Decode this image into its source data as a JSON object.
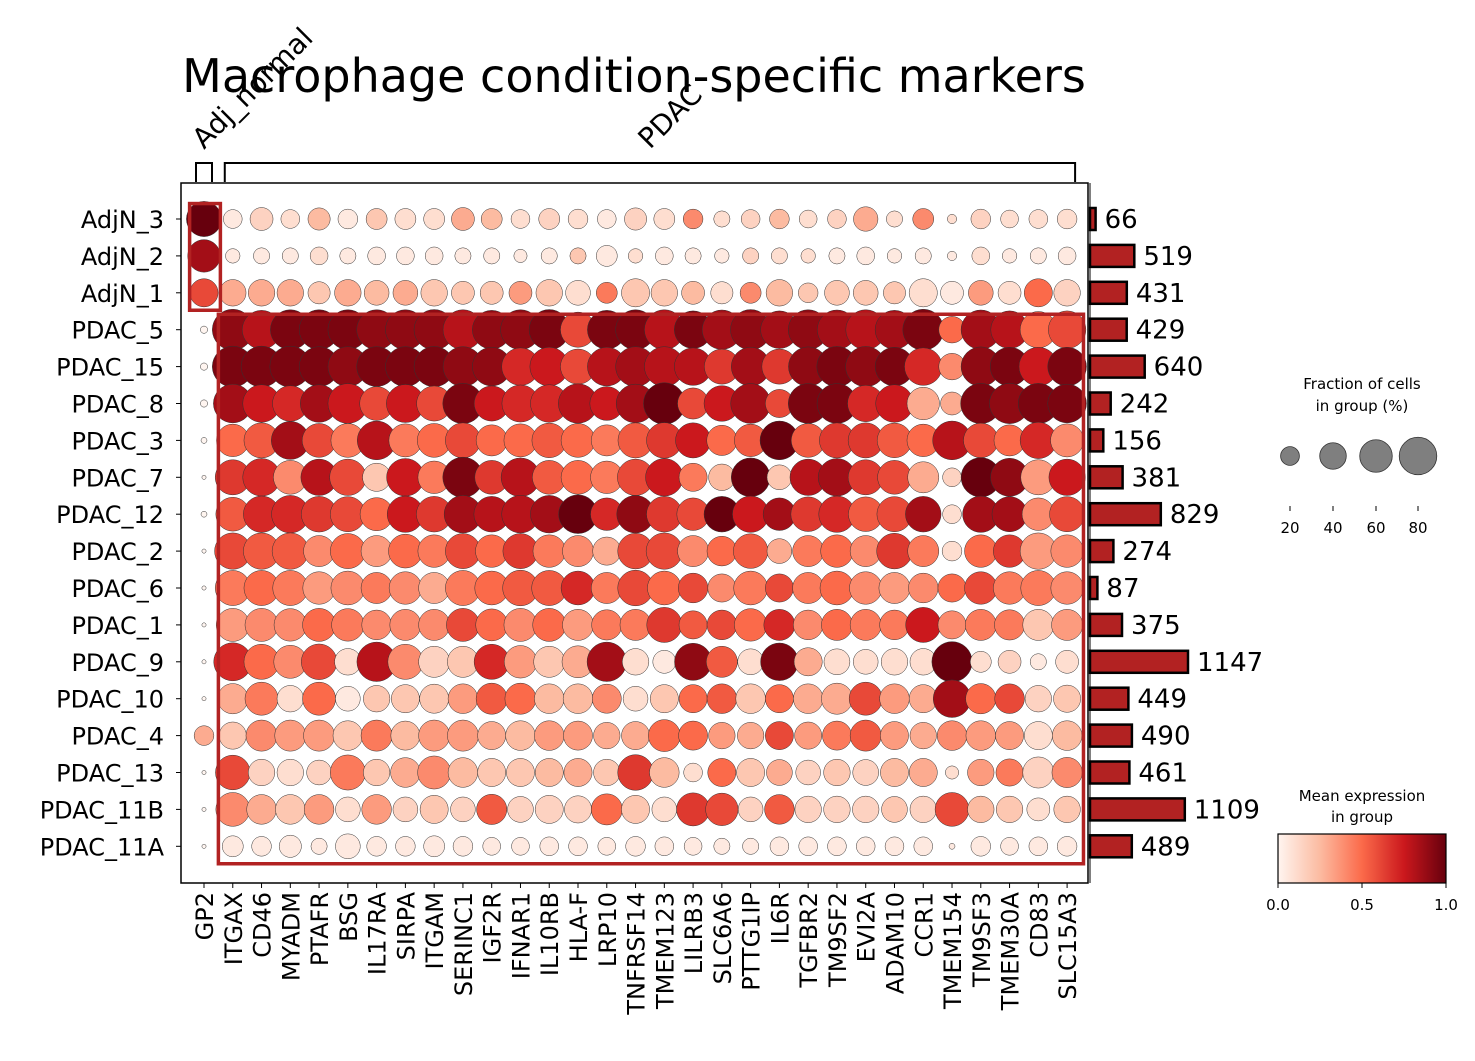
{
  "chart_data": {
    "type": "scatter",
    "title": "Macrophage condition-specific markers",
    "groups": [
      "AdjN_3",
      "AdjN_2",
      "AdjN_1",
      "PDAC_5",
      "PDAC_15",
      "PDAC_8",
      "PDAC_3",
      "PDAC_7",
      "PDAC_12",
      "PDAC_2",
      "PDAC_6",
      "PDAC_1",
      "PDAC_9",
      "PDAC_10",
      "PDAC_4",
      "PDAC_13",
      "PDAC_11B",
      "PDAC_11A"
    ],
    "genes": [
      "GP2",
      "ITGAX",
      "CD46",
      "MYADM",
      "PTAFR",
      "BSG",
      "IL17RA",
      "SIRPA",
      "ITGAM",
      "SERINC1",
      "IGF2R",
      "IFNAR1",
      "IL10RB",
      "HLA-F",
      "LRP10",
      "TNFRSF14",
      "TMEM123",
      "LILRB3",
      "SLC6A6",
      "PTTG1IP",
      "IL6R",
      "TGFBR2",
      "TM9SF2",
      "EVI2A",
      "ADAM10",
      "CCR1",
      "TMEM154",
      "TM9SF3",
      "TMEM30A",
      "CD83",
      "SLC15A3"
    ],
    "var_groups": [
      {
        "label": "Adj_normal",
        "genes": [
          "GP2"
        ]
      },
      {
        "label": "PDAC",
        "genes": [
          "ITGAX",
          "CD46",
          "MYADM",
          "PTAFR",
          "BSG",
          "IL17RA",
          "SIRPA",
          "ITGAM",
          "SERINC1",
          "IGF2R",
          "IFNAR1",
          "IL10RB",
          "HLA-F",
          "LRP10",
          "TNFRSF14",
          "TMEM123",
          "LILRB3",
          "SLC6A6",
          "PTTG1IP",
          "IL6R",
          "TGFBR2",
          "TM9SF2",
          "EVI2A",
          "ADAM10",
          "CCR1",
          "TMEM154",
          "TM9SF3",
          "TMEM30A",
          "CD83",
          "SLC15A3"
        ]
      }
    ],
    "cell_counts": [
      66,
      519,
      431,
      429,
      640,
      242,
      156,
      381,
      829,
      274,
      87,
      375,
      1147,
      449,
      490,
      461,
      1109,
      489
    ],
    "fraction_pct": [
      [
        70,
        20,
        30,
        20,
        28,
        22,
        25,
        25,
        25,
        30,
        25,
        20,
        25,
        22,
        20,
        28,
        25,
        22,
        15,
        20,
        22,
        18,
        20,
        34,
        15,
        25,
        5,
        22,
        18,
        20,
        22
      ],
      [
        60,
        12,
        15,
        15,
        18,
        15,
        18,
        18,
        18,
        15,
        15,
        10,
        15,
        15,
        25,
        12,
        18,
        15,
        12,
        15,
        15,
        12,
        15,
        18,
        12,
        15,
        5,
        18,
        12,
        15,
        18
      ],
      [
        45,
        40,
        40,
        40,
        28,
        40,
        35,
        35,
        40,
        30,
        30,
        30,
        40,
        35,
        25,
        45,
        40,
        30,
        28,
        25,
        40,
        22,
        35,
        35,
        28,
        45,
        30,
        35,
        30,
        45,
        40
      ],
      [
        3,
        95,
        85,
        90,
        90,
        90,
        90,
        90,
        92,
        90,
        85,
        90,
        92,
        70,
        85,
        90,
        90,
        80,
        88,
        92,
        80,
        90,
        88,
        90,
        85,
        95,
        40,
        88,
        80,
        75,
        80
      ],
      [
        3,
        95,
        95,
        95,
        90,
        90,
        90,
        90,
        92,
        90,
        85,
        80,
        85,
        70,
        85,
        90,
        90,
        80,
        70,
        85,
        70,
        88,
        92,
        92,
        85,
        80,
        40,
        88,
        85,
        85,
        85
      ],
      [
        3,
        85,
        80,
        72,
        80,
        90,
        65,
        82,
        70,
        92,
        70,
        78,
        80,
        88,
        65,
        85,
        98,
        55,
        72,
        90,
        45,
        90,
        90,
        75,
        80,
        60,
        30,
        92,
        92,
        92,
        85
      ],
      [
        2,
        60,
        70,
        82,
        65,
        65,
        85,
        62,
        65,
        70,
        55,
        62,
        68,
        65,
        55,
        70,
        72,
        70,
        52,
        60,
        85,
        65,
        70,
        70,
        68,
        60,
        85,
        68,
        55,
        75,
        62
      ],
      [
        1,
        70,
        80,
        65,
        75,
        75,
        45,
        80,
        60,
        92,
        65,
        85,
        65,
        65,
        60,
        75,
        80,
        45,
        40,
        85,
        35,
        75,
        80,
        70,
        65,
        55,
        20,
        88,
        82,
        70,
        75
      ],
      [
        2,
        65,
        75,
        80,
        72,
        70,
        62,
        75,
        72,
        80,
        72,
        80,
        80,
        85,
        60,
        80,
        72,
        60,
        72,
        75,
        60,
        68,
        75,
        68,
        70,
        72,
        20,
        75,
        70,
        60,
        70
      ],
      [
        1,
        75,
        75,
        75,
        55,
        70,
        55,
        65,
        60,
        70,
        60,
        70,
        60,
        55,
        45,
        72,
        75,
        55,
        50,
        68,
        35,
        55,
        60,
        55,
        72,
        55,
        22,
        60,
        60,
        75,
        60
      ],
      [
        1,
        70,
        70,
        70,
        60,
        65,
        55,
        60,
        55,
        70,
        65,
        72,
        70,
        65,
        55,
        72,
        65,
        50,
        45,
        65,
        45,
        55,
        65,
        60,
        55,
        50,
        45,
        60,
        60,
        70,
        60
      ],
      [
        1,
        62,
        62,
        60,
        62,
        60,
        50,
        55,
        55,
        62,
        58,
        62,
        62,
        55,
        52,
        55,
        70,
        45,
        50,
        60,
        55,
        50,
        55,
        55,
        50,
        70,
        45,
        55,
        52,
        55,
        55
      ],
      [
        1,
        82,
        70,
        62,
        72,
        40,
        88,
        70,
        55,
        55,
        70,
        60,
        55,
        58,
        88,
        40,
        30,
        78,
        55,
        38,
        80,
        45,
        38,
        35,
        40,
        40,
        92,
        25,
        30,
        15,
        30
      ],
      [
        1,
        52,
        62,
        40,
        62,
        35,
        40,
        45,
        48,
        50,
        55,
        55,
        50,
        50,
        48,
        35,
        45,
        45,
        50,
        50,
        45,
        50,
        55,
        62,
        50,
        45,
        80,
        52,
        50,
        40,
        42
      ],
      [
        22,
        42,
        55,
        55,
        55,
        50,
        55,
        48,
        55,
        55,
        45,
        50,
        50,
        48,
        40,
        45,
        58,
        48,
        40,
        40,
        45,
        42,
        48,
        55,
        45,
        40,
        50,
        50,
        45,
        45,
        50
      ],
      [
        1,
        68,
        40,
        40,
        35,
        70,
        40,
        50,
        62,
        50,
        45,
        45,
        45,
        45,
        40,
        72,
        50,
        20,
        45,
        45,
        38,
        35,
        40,
        38,
        45,
        45,
        10,
        40,
        42,
        55,
        52
      ],
      [
        1,
        65,
        50,
        50,
        50,
        35,
        50,
        35,
        45,
        35,
        52,
        38,
        45,
        42,
        55,
        45,
        35,
        62,
        60,
        35,
        50,
        40,
        40,
        40,
        38,
        40,
        65,
        40,
        40,
        30,
        40
      ],
      [
        1,
        25,
        22,
        28,
        15,
        35,
        22,
        22,
        25,
        22,
        18,
        18,
        20,
        20,
        18,
        22,
        20,
        18,
        15,
        15,
        20,
        20,
        20,
        20,
        20,
        20,
        2,
        22,
        18,
        20,
        22
      ]
    ],
    "mean_expression": [
      [
        1.0,
        0.05,
        0.15,
        0.1,
        0.25,
        0.05,
        0.2,
        0.1,
        0.1,
        0.3,
        0.25,
        0.1,
        0.15,
        0.1,
        0.05,
        0.15,
        0.1,
        0.4,
        0.1,
        0.15,
        0.25,
        0.1,
        0.15,
        0.3,
        0.1,
        0.4,
        0.1,
        0.15,
        0.1,
        0.1,
        0.1
      ],
      [
        0.85,
        0.05,
        0.05,
        0.05,
        0.1,
        0.05,
        0.05,
        0.05,
        0.05,
        0.05,
        0.05,
        0.05,
        0.05,
        0.2,
        0.05,
        0.1,
        0.05,
        0.05,
        0.05,
        0.15,
        0.1,
        0.1,
        0.05,
        0.05,
        0.05,
        0.05,
        0.05,
        0.1,
        0.05,
        0.05,
        0.05
      ],
      [
        0.6,
        0.3,
        0.3,
        0.3,
        0.2,
        0.3,
        0.25,
        0.3,
        0.2,
        0.2,
        0.2,
        0.35,
        0.2,
        0.1,
        0.45,
        0.2,
        0.2,
        0.25,
        0.1,
        0.4,
        0.25,
        0.2,
        0.2,
        0.2,
        0.2,
        0.1,
        0.05,
        0.35,
        0.1,
        0.5,
        0.15
      ],
      [
        0.0,
        0.9,
        0.8,
        0.95,
        0.95,
        0.95,
        0.9,
        0.9,
        0.9,
        0.8,
        0.9,
        0.9,
        0.95,
        0.6,
        0.95,
        0.95,
        0.8,
        0.95,
        0.85,
        0.9,
        0.85,
        0.9,
        0.85,
        0.8,
        0.85,
        0.95,
        0.5,
        0.85,
        0.8,
        0.5,
        0.6
      ],
      [
        0.0,
        0.95,
        0.95,
        0.95,
        0.95,
        0.9,
        0.95,
        0.95,
        0.95,
        0.9,
        0.9,
        0.7,
        0.75,
        0.6,
        0.8,
        0.85,
        0.8,
        0.8,
        0.65,
        0.85,
        0.65,
        0.9,
        0.95,
        0.9,
        0.95,
        0.7,
        0.4,
        0.9,
        0.95,
        0.75,
        0.95
      ],
      [
        0.0,
        0.85,
        0.75,
        0.7,
        0.85,
        0.75,
        0.6,
        0.75,
        0.6,
        0.95,
        0.75,
        0.7,
        0.7,
        0.8,
        0.75,
        0.85,
        1.0,
        0.6,
        0.75,
        0.85,
        0.6,
        0.95,
        0.95,
        0.7,
        0.75,
        0.3,
        0.3,
        0.95,
        0.9,
        0.95,
        0.95
      ],
      [
        0.0,
        0.5,
        0.55,
        0.85,
        0.6,
        0.45,
        0.8,
        0.45,
        0.5,
        0.6,
        0.5,
        0.5,
        0.55,
        0.5,
        0.45,
        0.55,
        0.65,
        0.75,
        0.5,
        0.55,
        1.0,
        0.55,
        0.65,
        0.65,
        0.55,
        0.5,
        0.8,
        0.6,
        0.5,
        0.7,
        0.4
      ],
      [
        0.0,
        0.65,
        0.7,
        0.4,
        0.8,
        0.6,
        0.2,
        0.75,
        0.45,
        0.95,
        0.65,
        0.8,
        0.55,
        0.5,
        0.45,
        0.6,
        0.75,
        0.45,
        0.25,
        1.0,
        0.2,
        0.8,
        0.85,
        0.65,
        0.6,
        0.3,
        0.15,
        1.0,
        0.9,
        0.35,
        0.75
      ],
      [
        0.0,
        0.55,
        0.7,
        0.7,
        0.65,
        0.6,
        0.5,
        0.75,
        0.65,
        0.85,
        0.8,
        0.8,
        0.85,
        1.0,
        0.7,
        0.9,
        0.65,
        0.6,
        1.0,
        0.75,
        0.85,
        0.65,
        0.7,
        0.55,
        0.6,
        0.85,
        0.1,
        0.85,
        0.85,
        0.4,
        0.6
      ],
      [
        0.0,
        0.6,
        0.55,
        0.55,
        0.4,
        0.5,
        0.35,
        0.5,
        0.45,
        0.6,
        0.5,
        0.65,
        0.45,
        0.4,
        0.3,
        0.6,
        0.6,
        0.4,
        0.5,
        0.55,
        0.3,
        0.45,
        0.5,
        0.4,
        0.65,
        0.45,
        0.1,
        0.5,
        0.65,
        0.35,
        0.4
      ],
      [
        0.0,
        0.45,
        0.5,
        0.45,
        0.35,
        0.4,
        0.45,
        0.4,
        0.3,
        0.45,
        0.5,
        0.55,
        0.55,
        0.7,
        0.45,
        0.6,
        0.5,
        0.6,
        0.4,
        0.45,
        0.6,
        0.45,
        0.5,
        0.4,
        0.35,
        0.4,
        0.5,
        0.6,
        0.45,
        0.45,
        0.4
      ],
      [
        0.0,
        0.35,
        0.4,
        0.4,
        0.5,
        0.45,
        0.4,
        0.4,
        0.4,
        0.6,
        0.5,
        0.4,
        0.5,
        0.35,
        0.45,
        0.45,
        0.65,
        0.55,
        0.6,
        0.5,
        0.7,
        0.4,
        0.5,
        0.45,
        0.45,
        0.75,
        0.4,
        0.45,
        0.45,
        0.2,
        0.35
      ],
      [
        0.0,
        0.7,
        0.5,
        0.4,
        0.6,
        0.1,
        0.8,
        0.4,
        0.15,
        0.2,
        0.7,
        0.35,
        0.2,
        0.3,
        0.85,
        0.1,
        0.05,
        0.9,
        0.55,
        0.1,
        0.95,
        0.3,
        0.1,
        0.1,
        0.1,
        0.1,
        1.0,
        0.1,
        0.15,
        0.05,
        0.1
      ],
      [
        0.0,
        0.3,
        0.45,
        0.1,
        0.5,
        0.05,
        0.2,
        0.2,
        0.2,
        0.35,
        0.55,
        0.5,
        0.25,
        0.25,
        0.4,
        0.1,
        0.2,
        0.5,
        0.55,
        0.2,
        0.5,
        0.3,
        0.3,
        0.6,
        0.35,
        0.3,
        0.85,
        0.5,
        0.6,
        0.15,
        0.2
      ],
      [
        0.3,
        0.2,
        0.4,
        0.35,
        0.35,
        0.2,
        0.45,
        0.25,
        0.35,
        0.35,
        0.3,
        0.25,
        0.35,
        0.35,
        0.3,
        0.3,
        0.5,
        0.5,
        0.35,
        0.3,
        0.6,
        0.35,
        0.45,
        0.55,
        0.35,
        0.3,
        0.4,
        0.35,
        0.35,
        0.1,
        0.25
      ],
      [
        0.0,
        0.6,
        0.15,
        0.1,
        0.15,
        0.45,
        0.2,
        0.3,
        0.4,
        0.25,
        0.2,
        0.2,
        0.25,
        0.3,
        0.2,
        0.65,
        0.25,
        0.1,
        0.5,
        0.2,
        0.3,
        0.15,
        0.2,
        0.15,
        0.25,
        0.3,
        0.1,
        0.35,
        0.45,
        0.15,
        0.4
      ],
      [
        0.0,
        0.4,
        0.3,
        0.2,
        0.35,
        0.1,
        0.35,
        0.15,
        0.2,
        0.15,
        0.55,
        0.15,
        0.15,
        0.15,
        0.5,
        0.2,
        0.1,
        0.65,
        0.6,
        0.15,
        0.55,
        0.15,
        0.15,
        0.15,
        0.2,
        0.15,
        0.6,
        0.25,
        0.2,
        0.1,
        0.2
      ],
      [
        0.0,
        0.05,
        0.05,
        0.05,
        0.05,
        0.05,
        0.05,
        0.05,
        0.05,
        0.05,
        0.05,
        0.05,
        0.05,
        0.05,
        0.05,
        0.05,
        0.05,
        0.05,
        0.05,
        0.05,
        0.05,
        0.05,
        0.05,
        0.05,
        0.05,
        0.05,
        0.05,
        0.05,
        0.05,
        0.05,
        0.05
      ]
    ],
    "highlight_boxes": [
      {
        "genes": [
          "GP2"
        ],
        "groups": [
          "AdjN_3",
          "AdjN_2",
          "AdjN_1"
        ],
        "color": "#b22222"
      },
      {
        "genes": [
          "ITGAX",
          "SLC15A3"
        ],
        "groups": [
          "PDAC_5",
          "PDAC_11A"
        ],
        "color": "#b22222"
      }
    ],
    "bar_color": "#b22222",
    "colormap": "Reds",
    "size_legend": {
      "title": [
        "Fraction of cells",
        "in group (%)"
      ],
      "ticks": [
        20,
        40,
        60,
        80
      ]
    },
    "color_legend": {
      "title": [
        "Mean expression",
        "in group"
      ],
      "ticks": [
        "0.0",
        "0.5",
        "1.0"
      ],
      "range": [
        0,
        1
      ]
    }
  }
}
